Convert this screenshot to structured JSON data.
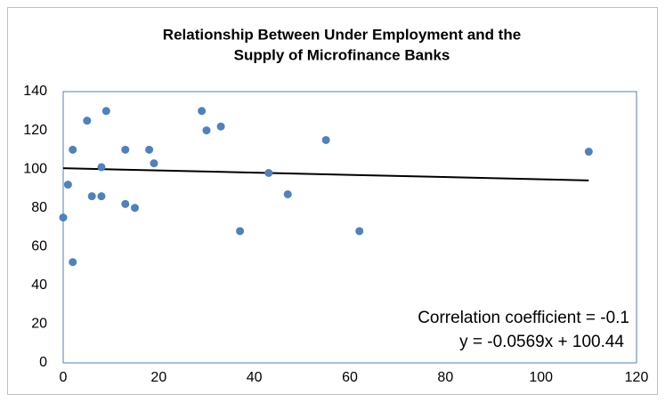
{
  "chart_data": {
    "type": "scatter",
    "title": [
      "Relationship Between Under Employment and the",
      "Supply of Microfinance Banks"
    ],
    "x": [
      0,
      1,
      2,
      2,
      5,
      6,
      8,
      8,
      9,
      13,
      13,
      15,
      18,
      19,
      29,
      30,
      33,
      37,
      43,
      47,
      55,
      62,
      110
    ],
    "values": [
      75,
      92,
      110,
      52,
      125,
      86,
      101,
      86,
      130,
      110,
      82,
      80,
      110,
      103,
      130,
      120,
      122,
      68,
      98,
      87,
      115,
      68,
      109
    ],
    "color": "#4f81bd",
    "xlim": [
      0,
      120
    ],
    "xticks": [
      0,
      20,
      40,
      60,
      80,
      100,
      120
    ],
    "ylim": [
      0,
      140
    ],
    "yticks": [
      0,
      20,
      40,
      60,
      80,
      100,
      120,
      140
    ],
    "grid": false,
    "trendline": {
      "slope": -0.0569,
      "intercept": 100.44,
      "color": "#000000"
    },
    "annotations": [
      "Correlation coefficient = -0.1",
      "y = -0.0569x + 100.44"
    ]
  }
}
